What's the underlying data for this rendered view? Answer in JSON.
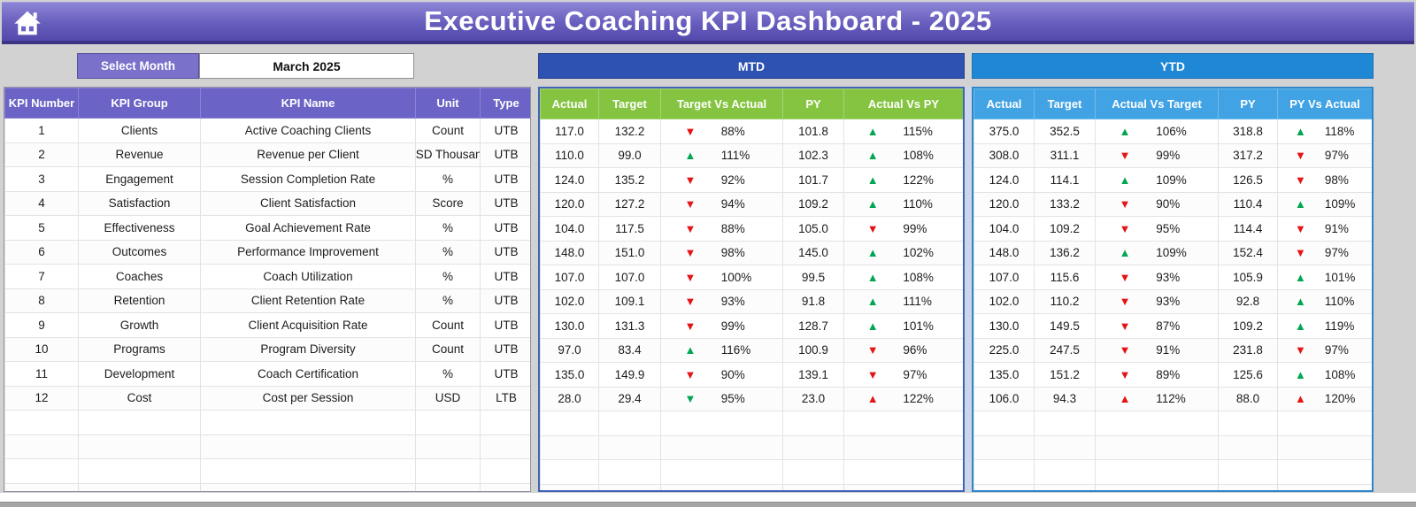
{
  "header": {
    "title": "Executive Coaching KPI Dashboard - 2025"
  },
  "controls": {
    "select_month_label": "Select Month",
    "selected_month": "March 2025"
  },
  "colors": {
    "green": "#00a651",
    "red": "#e51414",
    "purple_accent": "#6b63c5",
    "mtd_banner": "#2e52b2",
    "mtd_header": "#85c441",
    "ytd_banner": "#1f88d6",
    "ytd_header": "#42a3e4"
  },
  "empty_rows": 4,
  "kpi_table": {
    "headers": [
      "KPI Number",
      "KPI Group",
      "KPI Name",
      "Unit",
      "Type"
    ],
    "rows": [
      {
        "number": "1",
        "group": "Clients",
        "name": "Active Coaching Clients",
        "unit": "Count",
        "type": "UTB"
      },
      {
        "number": "2",
        "group": "Revenue",
        "name": "Revenue per Client",
        "unit": "USD Thousand",
        "type": "UTB"
      },
      {
        "number": "3",
        "group": "Engagement",
        "name": "Session Completion Rate",
        "unit": "%",
        "type": "UTB"
      },
      {
        "number": "4",
        "group": "Satisfaction",
        "name": "Client Satisfaction",
        "unit": "Score",
        "type": "UTB"
      },
      {
        "number": "5",
        "group": "Effectiveness",
        "name": "Goal Achievement Rate",
        "unit": "%",
        "type": "UTB"
      },
      {
        "number": "6",
        "group": "Outcomes",
        "name": "Performance Improvement",
        "unit": "%",
        "type": "UTB"
      },
      {
        "number": "7",
        "group": "Coaches",
        "name": "Coach Utilization",
        "unit": "%",
        "type": "UTB"
      },
      {
        "number": "8",
        "group": "Retention",
        "name": "Client Retention Rate",
        "unit": "%",
        "type": "UTB"
      },
      {
        "number": "9",
        "group": "Growth",
        "name": "Client Acquisition Rate",
        "unit": "Count",
        "type": "UTB"
      },
      {
        "number": "10",
        "group": "Programs",
        "name": "Program Diversity",
        "unit": "Count",
        "type": "UTB"
      },
      {
        "number": "11",
        "group": "Development",
        "name": "Coach Certification",
        "unit": "%",
        "type": "UTB"
      },
      {
        "number": "12",
        "group": "Cost",
        "name": "Cost per Session",
        "unit": "USD",
        "type": "LTB"
      }
    ]
  },
  "mtd": {
    "title": "MTD",
    "headers": [
      "Actual",
      "Target",
      "Target Vs Actual",
      "PY",
      "Actual Vs PY"
    ],
    "rows": [
      {
        "actual": "117.0",
        "target": "132.2",
        "cmp1": {
          "arrow": "down",
          "color": "red",
          "value": "88%"
        },
        "py": "101.8",
        "cmp2": {
          "arrow": "up",
          "color": "green",
          "value": "115%"
        }
      },
      {
        "actual": "110.0",
        "target": "99.0",
        "cmp1": {
          "arrow": "up",
          "color": "green",
          "value": "111%"
        },
        "py": "102.3",
        "cmp2": {
          "arrow": "up",
          "color": "green",
          "value": "108%"
        }
      },
      {
        "actual": "124.0",
        "target": "135.2",
        "cmp1": {
          "arrow": "down",
          "color": "red",
          "value": "92%"
        },
        "py": "101.7",
        "cmp2": {
          "arrow": "up",
          "color": "green",
          "value": "122%"
        }
      },
      {
        "actual": "120.0",
        "target": "127.2",
        "cmp1": {
          "arrow": "down",
          "color": "red",
          "value": "94%"
        },
        "py": "109.2",
        "cmp2": {
          "arrow": "up",
          "color": "green",
          "value": "110%"
        }
      },
      {
        "actual": "104.0",
        "target": "117.5",
        "cmp1": {
          "arrow": "down",
          "color": "red",
          "value": "88%"
        },
        "py": "105.0",
        "cmp2": {
          "arrow": "down",
          "color": "red",
          "value": "99%"
        }
      },
      {
        "actual": "148.0",
        "target": "151.0",
        "cmp1": {
          "arrow": "down",
          "color": "red",
          "value": "98%"
        },
        "py": "145.0",
        "cmp2": {
          "arrow": "up",
          "color": "green",
          "value": "102%"
        }
      },
      {
        "actual": "107.0",
        "target": "107.0",
        "cmp1": {
          "arrow": "down",
          "color": "red",
          "value": "100%"
        },
        "py": "99.5",
        "cmp2": {
          "arrow": "up",
          "color": "green",
          "value": "108%"
        }
      },
      {
        "actual": "102.0",
        "target": "109.1",
        "cmp1": {
          "arrow": "down",
          "color": "red",
          "value": "93%"
        },
        "py": "91.8",
        "cmp2": {
          "arrow": "up",
          "color": "green",
          "value": "111%"
        }
      },
      {
        "actual": "130.0",
        "target": "131.3",
        "cmp1": {
          "arrow": "down",
          "color": "red",
          "value": "99%"
        },
        "py": "128.7",
        "cmp2": {
          "arrow": "up",
          "color": "green",
          "value": "101%"
        }
      },
      {
        "actual": "97.0",
        "target": "83.4",
        "cmp1": {
          "arrow": "up",
          "color": "green",
          "value": "116%"
        },
        "py": "100.9",
        "cmp2": {
          "arrow": "down",
          "color": "red",
          "value": "96%"
        }
      },
      {
        "actual": "135.0",
        "target": "149.9",
        "cmp1": {
          "arrow": "down",
          "color": "red",
          "value": "90%"
        },
        "py": "139.1",
        "cmp2": {
          "arrow": "down",
          "color": "red",
          "value": "97%"
        }
      },
      {
        "actual": "28.0",
        "target": "29.4",
        "cmp1": {
          "arrow": "down",
          "color": "green",
          "value": "95%"
        },
        "py": "23.0",
        "cmp2": {
          "arrow": "up",
          "color": "red",
          "value": "122%"
        }
      }
    ]
  },
  "ytd": {
    "title": "YTD",
    "headers": [
      "Actual",
      "Target",
      "Actual Vs Target",
      "PY",
      "PY Vs Actual"
    ],
    "rows": [
      {
        "actual": "375.0",
        "target": "352.5",
        "cmp1": {
          "arrow": "up",
          "color": "green",
          "value": "106%"
        },
        "py": "318.8",
        "cmp2": {
          "arrow": "up",
          "color": "green",
          "value": "118%"
        }
      },
      {
        "actual": "308.0",
        "target": "311.1",
        "cmp1": {
          "arrow": "down",
          "color": "red",
          "value": "99%"
        },
        "py": "317.2",
        "cmp2": {
          "arrow": "down",
          "color": "red",
          "value": "97%"
        }
      },
      {
        "actual": "124.0",
        "target": "114.1",
        "cmp1": {
          "arrow": "up",
          "color": "green",
          "value": "109%"
        },
        "py": "126.5",
        "cmp2": {
          "arrow": "down",
          "color": "red",
          "value": "98%"
        }
      },
      {
        "actual": "120.0",
        "target": "133.2",
        "cmp1": {
          "arrow": "down",
          "color": "red",
          "value": "90%"
        },
        "py": "110.4",
        "cmp2": {
          "arrow": "up",
          "color": "green",
          "value": "109%"
        }
      },
      {
        "actual": "104.0",
        "target": "109.2",
        "cmp1": {
          "arrow": "down",
          "color": "red",
          "value": "95%"
        },
        "py": "114.4",
        "cmp2": {
          "arrow": "down",
          "color": "red",
          "value": "91%"
        }
      },
      {
        "actual": "148.0",
        "target": "136.2",
        "cmp1": {
          "arrow": "up",
          "color": "green",
          "value": "109%"
        },
        "py": "152.4",
        "cmp2": {
          "arrow": "down",
          "color": "red",
          "value": "97%"
        }
      },
      {
        "actual": "107.0",
        "target": "115.6",
        "cmp1": {
          "arrow": "down",
          "color": "red",
          "value": "93%"
        },
        "py": "105.9",
        "cmp2": {
          "arrow": "up",
          "color": "green",
          "value": "101%"
        }
      },
      {
        "actual": "102.0",
        "target": "110.2",
        "cmp1": {
          "arrow": "down",
          "color": "red",
          "value": "93%"
        },
        "py": "92.8",
        "cmp2": {
          "arrow": "up",
          "color": "green",
          "value": "110%"
        }
      },
      {
        "actual": "130.0",
        "target": "149.5",
        "cmp1": {
          "arrow": "down",
          "color": "red",
          "value": "87%"
        },
        "py": "109.2",
        "cmp2": {
          "arrow": "up",
          "color": "green",
          "value": "119%"
        }
      },
      {
        "actual": "225.0",
        "target": "247.5",
        "cmp1": {
          "arrow": "down",
          "color": "red",
          "value": "91%"
        },
        "py": "231.8",
        "cmp2": {
          "arrow": "down",
          "color": "red",
          "value": "97%"
        }
      },
      {
        "actual": "135.0",
        "target": "151.2",
        "cmp1": {
          "arrow": "down",
          "color": "red",
          "value": "89%"
        },
        "py": "125.6",
        "cmp2": {
          "arrow": "up",
          "color": "green",
          "value": "108%"
        }
      },
      {
        "actual": "106.0",
        "target": "94.3",
        "cmp1": {
          "arrow": "up",
          "color": "red",
          "value": "112%"
        },
        "py": "88.0",
        "cmp2": {
          "arrow": "up",
          "color": "red",
          "value": "120%"
        }
      }
    ]
  }
}
